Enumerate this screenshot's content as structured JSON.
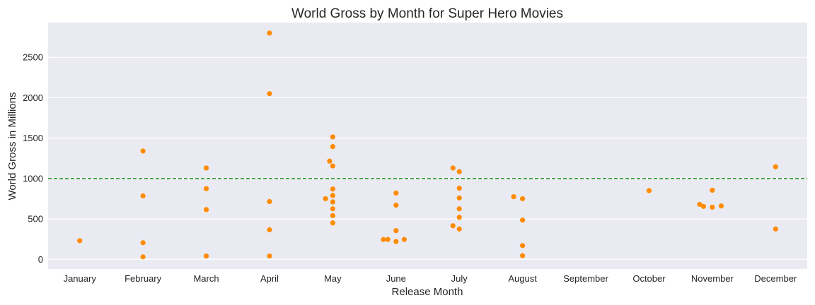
{
  "chart_data": {
    "type": "scatter",
    "title": "World Gross by Month for Super Hero Movies",
    "xlabel": "Release Month",
    "ylabel": "World Gross in Millions",
    "categories": [
      "January",
      "February",
      "March",
      "April",
      "May",
      "June",
      "July",
      "August",
      "September",
      "October",
      "November",
      "December"
    ],
    "yticks": [
      0,
      500,
      1000,
      1500,
      2000,
      2500
    ],
    "ylim": [
      -120,
      2930
    ],
    "reference_line": {
      "value": 1000,
      "style": "dashed",
      "color": "#2ca02c"
    },
    "grid": true,
    "point_color": "#ff8c00",
    "background_color": "#eaeaf2",
    "points": [
      {
        "month": "January",
        "offset": 0,
        "value": 230
      },
      {
        "month": "February",
        "offset": 0,
        "value": 1340
      },
      {
        "month": "February",
        "offset": 0,
        "value": 785
      },
      {
        "month": "February",
        "offset": 0,
        "value": 205
      },
      {
        "month": "February",
        "offset": 0,
        "value": 30
      },
      {
        "month": "March",
        "offset": 0,
        "value": 1130
      },
      {
        "month": "March",
        "offset": 0,
        "value": 875
      },
      {
        "month": "March",
        "offset": 0,
        "value": 615
      },
      {
        "month": "March",
        "offset": 0,
        "value": 40
      },
      {
        "month": "April",
        "offset": 0,
        "value": 2800
      },
      {
        "month": "April",
        "offset": 0,
        "value": 2050
      },
      {
        "month": "April",
        "offset": 0,
        "value": 715
      },
      {
        "month": "April",
        "offset": 0,
        "value": 365
      },
      {
        "month": "April",
        "offset": 0,
        "value": 40
      },
      {
        "month": "May",
        "offset": 0,
        "value": 1515
      },
      {
        "month": "May",
        "offset": 0,
        "value": 1395
      },
      {
        "month": "May",
        "offset": -0.1,
        "value": 1215
      },
      {
        "month": "May",
        "offset": 0,
        "value": 1155
      },
      {
        "month": "May",
        "offset": 0,
        "value": 870
      },
      {
        "month": "May",
        "offset": 0,
        "value": 790
      },
      {
        "month": "May",
        "offset": -0.23,
        "value": 750
      },
      {
        "month": "May",
        "offset": 0,
        "value": 710
      },
      {
        "month": "May",
        "offset": 0,
        "value": 625
      },
      {
        "month": "May",
        "offset": 0,
        "value": 540
      },
      {
        "month": "May",
        "offset": 0,
        "value": 450
      },
      {
        "month": "June",
        "offset": 0,
        "value": 820
      },
      {
        "month": "June",
        "offset": 0,
        "value": 670
      },
      {
        "month": "June",
        "offset": 0,
        "value": 355
      },
      {
        "month": "June",
        "offset": -0.4,
        "value": 245
      },
      {
        "month": "June",
        "offset": -0.26,
        "value": 245
      },
      {
        "month": "June",
        "offset": 0.26,
        "value": 245
      },
      {
        "month": "June",
        "offset": 0,
        "value": 220
      },
      {
        "month": "July",
        "offset": -0.2,
        "value": 1130
      },
      {
        "month": "July",
        "offset": 0,
        "value": 1085
      },
      {
        "month": "July",
        "offset": 0,
        "value": 880
      },
      {
        "month": "July",
        "offset": 0,
        "value": 760
      },
      {
        "month": "July",
        "offset": 0,
        "value": 625
      },
      {
        "month": "July",
        "offset": 0,
        "value": 520
      },
      {
        "month": "July",
        "offset": -0.2,
        "value": 415
      },
      {
        "month": "July",
        "offset": 0,
        "value": 375
      },
      {
        "month": "August",
        "offset": -0.28,
        "value": 775
      },
      {
        "month": "August",
        "offset": 0,
        "value": 750
      },
      {
        "month": "August",
        "offset": 0,
        "value": 485
      },
      {
        "month": "August",
        "offset": 0,
        "value": 170
      },
      {
        "month": "August",
        "offset": 0,
        "value": 45
      },
      {
        "month": "October",
        "offset": 0,
        "value": 850
      },
      {
        "month": "November",
        "offset": -0.4,
        "value": 680
      },
      {
        "month": "November",
        "offset": -0.28,
        "value": 655
      },
      {
        "month": "November",
        "offset": 0,
        "value": 855
      },
      {
        "month": "November",
        "offset": 0,
        "value": 645
      },
      {
        "month": "November",
        "offset": 0.28,
        "value": 660
      },
      {
        "month": "December",
        "offset": 0,
        "value": 1145
      },
      {
        "month": "December",
        "offset": 0,
        "value": 375
      }
    ]
  }
}
